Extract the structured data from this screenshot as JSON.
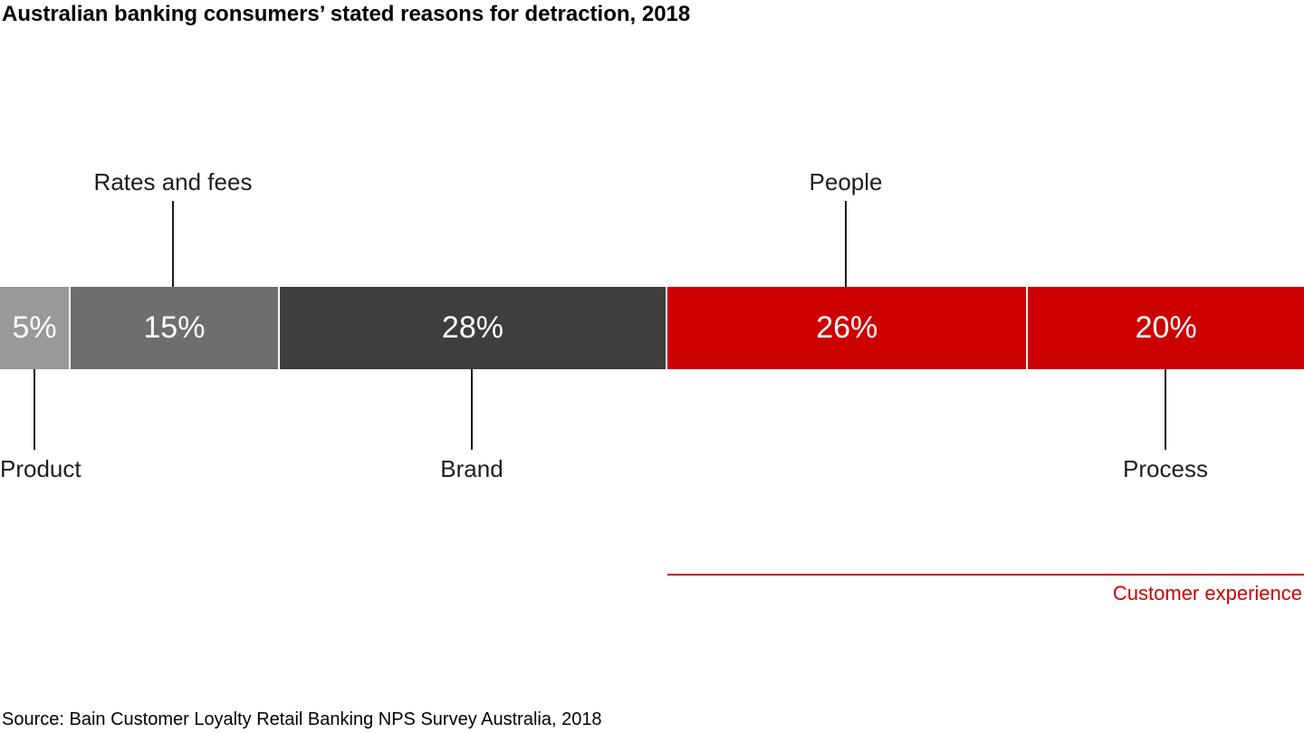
{
  "title": "Australian banking consumers’ stated reasons for detraction, 2018",
  "source": "Source: Bain Customer Loyalty Retail Banking NPS Survey Australia, 2018",
  "colors": {
    "accent_red": "#cc0000",
    "light_gray": "#999999",
    "mid_gray": "#6e6e71",
    "dark_gray": "#3e3e3e",
    "label_text": "#1e1e1e",
    "bar_value_text": "#ffffff"
  },
  "chart_data": {
    "type": "bar",
    "subtype": "horizontal-stacked-percentage",
    "title": "Australian banking consumers’ stated reasons for detraction, 2018",
    "unit": "%",
    "categories": [
      "Product",
      "Rates and fees",
      "Brand",
      "People",
      "Process"
    ],
    "values": [
      5,
      15,
      28,
      26,
      20
    ],
    "grid": false,
    "legend_position": "none",
    "segments": [
      {
        "category": "Product",
        "value": 5,
        "display": "5%",
        "color": "#999999",
        "label_position": "below"
      },
      {
        "category": "Rates and fees",
        "value": 15,
        "display": "15%",
        "color": "#6e6e71",
        "label_position": "above"
      },
      {
        "category": "Brand",
        "value": 28,
        "display": "28%",
        "color": "#3e3e3e",
        "label_position": "below"
      },
      {
        "category": "People",
        "value": 26,
        "display": "26%",
        "color": "#cc0000",
        "label_position": "above"
      },
      {
        "category": "Process",
        "value": 20,
        "display": "20%",
        "color": "#cc0000",
        "label_position": "below"
      }
    ],
    "annotation": {
      "label": "Customer experience",
      "color": "#cc0000",
      "covers": [
        "People",
        "Process"
      ]
    }
  }
}
